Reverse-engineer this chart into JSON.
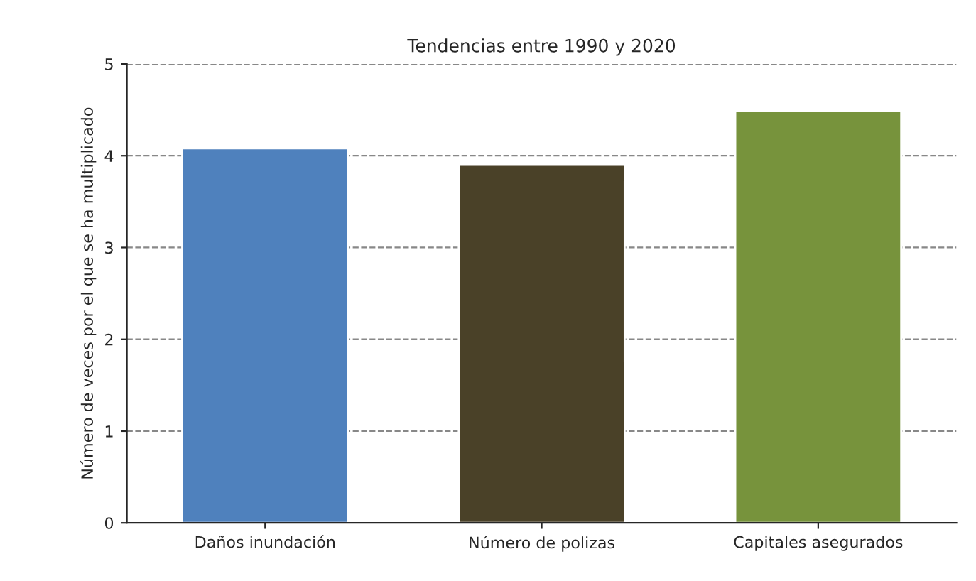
{
  "chart_data": {
    "type": "bar",
    "title": "Tendencias entre 1990 y 2020",
    "ylabel": "Número de veces por el que se ha multiplicado",
    "categories": [
      "Daños inundación",
      "Número de polizas",
      "Capitales asegurados"
    ],
    "values": [
      4.08,
      3.9,
      4.49
    ],
    "colors": [
      "#4f81bd",
      "#4a4128",
      "#77933c"
    ],
    "ylim": [
      0,
      5
    ],
    "yticks": [
      0,
      1,
      2,
      3,
      4,
      5
    ],
    "grid": "y",
    "line_style": "dashed",
    "legend": false
  }
}
